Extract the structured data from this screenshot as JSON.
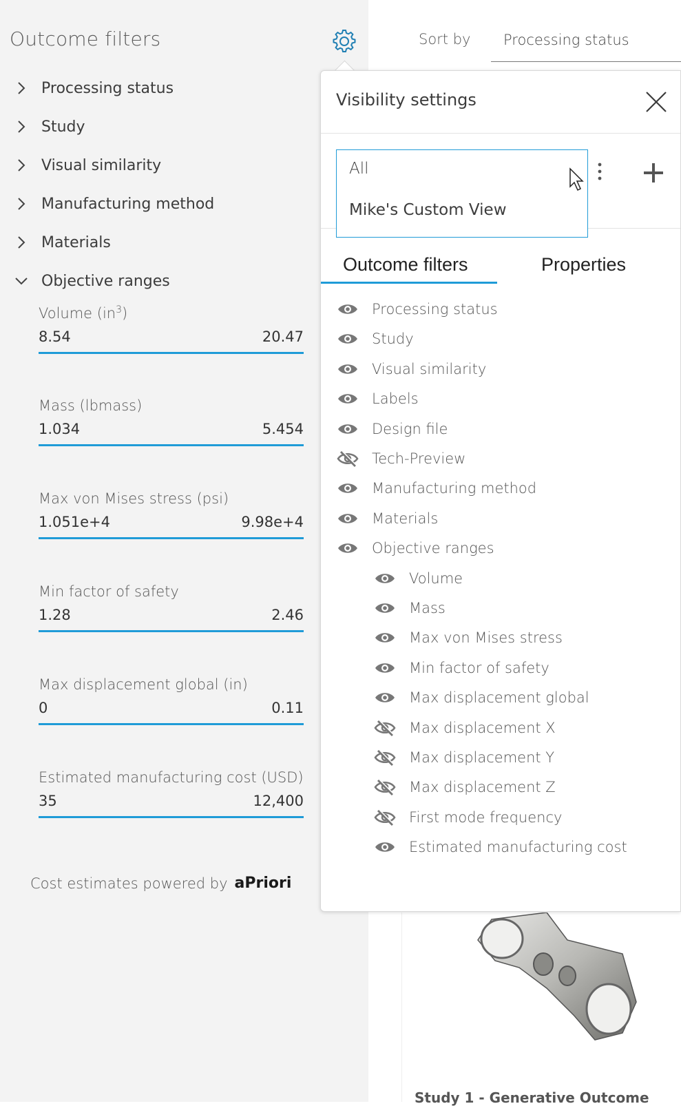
{
  "left_panel": {
    "title": "Outcome filters",
    "settings_icon": "gear-icon",
    "filters": [
      {
        "label": "Processing status",
        "expanded": false
      },
      {
        "label": "Study",
        "expanded": false
      },
      {
        "label": "Visual similarity",
        "expanded": false
      },
      {
        "label": "Manufacturing method",
        "expanded": false
      },
      {
        "label": "Materials",
        "expanded": false
      },
      {
        "label": "Objective ranges",
        "expanded": true
      }
    ],
    "ranges": [
      {
        "label": "Volume (in",
        "label_sup": "3",
        "label_end": ")",
        "min": "8.54",
        "max": "20.47"
      },
      {
        "label": "Mass (lbmass)",
        "min": "1.034",
        "max": "5.454"
      },
      {
        "label": "Max von Mises stress (psi)",
        "min": "1.051e+4",
        "max": "9.98e+4"
      },
      {
        "label": "Min factor of safety",
        "min": "1.28",
        "max": "2.46"
      },
      {
        "label": "Max displacement global (in)",
        "min": "0",
        "max": "0.11"
      },
      {
        "label": "Estimated manufacturing cost (USD)",
        "min": "35",
        "max": "12,400"
      }
    ],
    "powered_by": "Cost estimates powered by",
    "powered_brand": "aPriori"
  },
  "header": {
    "sort_label": "Sort by",
    "sort_value": "Processing status"
  },
  "visibility": {
    "title": "Visibility settings",
    "views": [
      "All",
      "Mike's Custom View"
    ],
    "tabs": [
      "Outcome filters",
      "Properties"
    ],
    "active_tab": "Outcome filters",
    "items": [
      {
        "label": "Processing status",
        "visible": true,
        "indent": false
      },
      {
        "label": "Study",
        "visible": true,
        "indent": false
      },
      {
        "label": "Visual similarity",
        "visible": true,
        "indent": false
      },
      {
        "label": "Labels",
        "visible": true,
        "indent": false
      },
      {
        "label": "Design file",
        "visible": true,
        "indent": false
      },
      {
        "label": "Tech-Preview",
        "visible": false,
        "indent": false
      },
      {
        "label": "Manufacturing method",
        "visible": true,
        "indent": false
      },
      {
        "label": "Materials",
        "visible": true,
        "indent": false
      },
      {
        "label": "Objective ranges",
        "visible": true,
        "indent": false
      },
      {
        "label": "Volume",
        "visible": true,
        "indent": true
      },
      {
        "label": "Mass",
        "visible": true,
        "indent": true
      },
      {
        "label": "Max von Mises stress",
        "visible": true,
        "indent": true
      },
      {
        "label": "Min factor of safety",
        "visible": true,
        "indent": true
      },
      {
        "label": "Max displacement global",
        "visible": true,
        "indent": true
      },
      {
        "label": "Max displacement X",
        "visible": false,
        "indent": true
      },
      {
        "label": "Max displacement Y",
        "visible": false,
        "indent": true
      },
      {
        "label": "Max displacement Z",
        "visible": false,
        "indent": true
      },
      {
        "label": "First mode frequency",
        "visible": false,
        "indent": true
      },
      {
        "label": "Estimated manufacturing cost",
        "visible": true,
        "indent": true
      }
    ]
  },
  "card": {
    "caption": "Study 1 - Generative Outcome"
  },
  "colors": {
    "accent": "#1f9bd7",
    "panel_bg": "#f3f3f3",
    "text": "#3c3c3c"
  }
}
